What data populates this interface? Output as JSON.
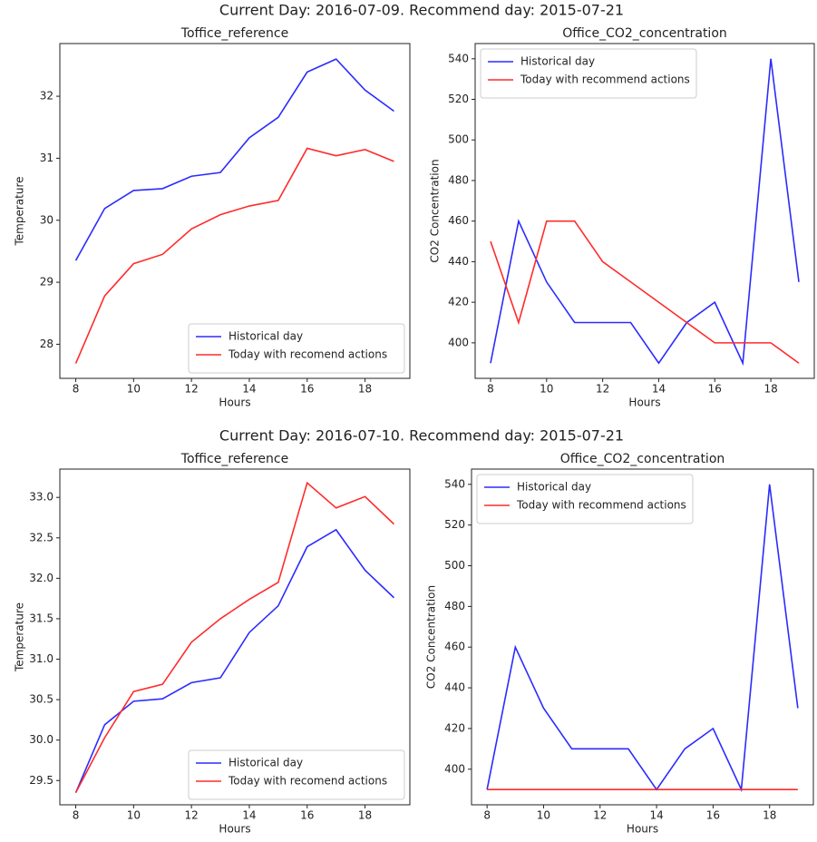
{
  "figure_titles": [
    "Current Day: 2016-07-09. Recommend day: 2015-07-21",
    "Current Day: 2016-07-10. Recommend day: 2015-07-21"
  ],
  "chart_data": [
    {
      "type": "line",
      "title": "Toffice_reference",
      "xlabel": "Hours",
      "ylabel": "Temperature",
      "x": [
        8,
        9,
        10,
        11,
        12,
        13,
        14,
        15,
        16,
        17,
        18,
        19
      ],
      "series": [
        {
          "name": "Historical day",
          "color": "#2b2bff",
          "values": [
            29.35,
            30.19,
            30.48,
            30.51,
            30.71,
            30.77,
            31.33,
            31.66,
            32.39,
            32.6,
            32.1,
            31.76
          ]
        },
        {
          "name": "Today with recomend actions",
          "color": "#ff2b2b",
          "values": [
            27.69,
            28.78,
            29.3,
            29.45,
            29.86,
            30.09,
            30.23,
            30.32,
            31.16,
            31.04,
            31.14,
            30.95
          ]
        }
      ],
      "xlim": [
        7.45,
        19.55
      ],
      "xticks": [
        8,
        10,
        12,
        14,
        16,
        18
      ],
      "ylim": [
        27.45,
        32.85
      ],
      "yticks": [
        28,
        29,
        30,
        31,
        32
      ],
      "legend": "lower right"
    },
    {
      "type": "line",
      "title": "Office_CO2_concentration",
      "xlabel": "Hours",
      "ylabel": "CO2 Concentration",
      "x": [
        8,
        9,
        10,
        11,
        12,
        13,
        14,
        15,
        16,
        17,
        18,
        19
      ],
      "series": [
        {
          "name": "Historical day",
          "color": "#2b2bff",
          "values": [
            390,
            460,
            430,
            410,
            410,
            410,
            390,
            410,
            420,
            390,
            540,
            430
          ]
        },
        {
          "name": "Today with recommend actions",
          "color": "#ff2b2b",
          "values": [
            450,
            410,
            460,
            460,
            440,
            430,
            420,
            410,
            400,
            400,
            400,
            390
          ]
        }
      ],
      "xlim": [
        7.45,
        19.55
      ],
      "xticks": [
        8,
        10,
        12,
        14,
        16,
        18
      ],
      "ylim": [
        382.5,
        547.5
      ],
      "yticks": [
        400,
        420,
        440,
        460,
        480,
        500,
        520,
        540
      ],
      "legend": "upper left"
    },
    {
      "type": "line",
      "title": "Toffice_reference",
      "xlabel": "Hours",
      "ylabel": "Temperature",
      "x": [
        8,
        9,
        10,
        11,
        12,
        13,
        14,
        15,
        16,
        17,
        18,
        19
      ],
      "series": [
        {
          "name": "Historical day",
          "color": "#2b2bff",
          "values": [
            29.35,
            30.19,
            30.48,
            30.51,
            30.71,
            30.77,
            31.33,
            31.66,
            32.39,
            32.6,
            32.1,
            31.76
          ]
        },
        {
          "name": "Today with recomend actions",
          "color": "#ff2b2b",
          "values": [
            29.35,
            30.03,
            30.6,
            30.69,
            31.21,
            31.5,
            31.74,
            31.95,
            33.18,
            32.87,
            33.01,
            32.67
          ]
        }
      ],
      "xlim": [
        7.45,
        19.55
      ],
      "xticks": [
        8,
        10,
        12,
        14,
        16,
        18
      ],
      "ylim": [
        29.2,
        33.35
      ],
      "yticks": [
        29.5,
        {
          "value": 30,
          "label": "30.0"
        },
        30.5,
        {
          "value": 31,
          "label": "31.0"
        },
        31.5,
        {
          "value": 32,
          "label": "32.0"
        },
        32.5,
        {
          "value": 33,
          "label": "33.0"
        }
      ],
      "legend": "lower right"
    },
    {
      "type": "line",
      "title": "Office_CO2_concentration",
      "xlabel": "Hours",
      "ylabel": "CO2 Concentration",
      "x": [
        8,
        9,
        10,
        11,
        12,
        13,
        14,
        15,
        16,
        17,
        18,
        19
      ],
      "series": [
        {
          "name": "Historical day",
          "color": "#2b2bff",
          "values": [
            390,
            460,
            430,
            410,
            410,
            410,
            390,
            410,
            420,
            390,
            540,
            430
          ]
        },
        {
          "name": "Today with recommend actions",
          "color": "#ff2b2b",
          "values": [
            390,
            390,
            390,
            390,
            390,
            390,
            390,
            390,
            390,
            390,
            390,
            390
          ]
        }
      ],
      "xlim": [
        7.45,
        19.55
      ],
      "xticks": [
        8,
        10,
        12,
        14,
        16,
        18
      ],
      "ylim": [
        382.5,
        547.5
      ],
      "yticks": [
        400,
        420,
        440,
        460,
        480,
        500,
        520,
        540
      ],
      "legend": "upper left"
    }
  ]
}
